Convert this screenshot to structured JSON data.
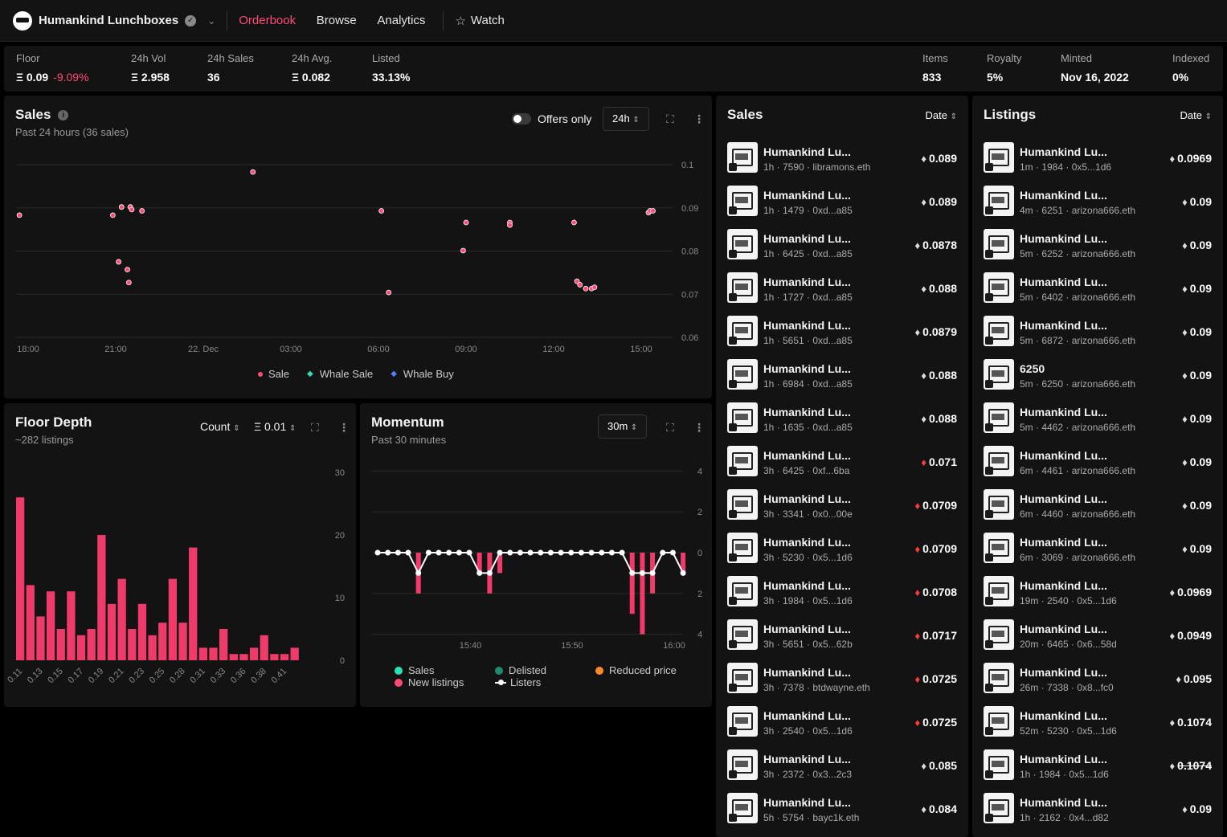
{
  "topbar": {
    "collection_name": "Humankind Lunchboxes",
    "nav": [
      {
        "label": "Orderbook",
        "active": true
      },
      {
        "label": "Browse",
        "active": false
      },
      {
        "label": "Analytics",
        "active": false
      }
    ],
    "watch_label": "Watch"
  },
  "stats": {
    "left": [
      {
        "label": "Floor",
        "value": "Ξ 0.09",
        "change": "-9.09%"
      },
      {
        "label": "24h Vol",
        "value": "Ξ 2.958"
      },
      {
        "label": "24h Sales",
        "value": "36"
      },
      {
        "label": "24h Avg.",
        "value": "Ξ 0.082"
      },
      {
        "label": "Listed",
        "value": "33.13%"
      }
    ],
    "right": [
      {
        "label": "Items",
        "value": "833"
      },
      {
        "label": "Royalty",
        "value": "5%"
      },
      {
        "label": "Minted",
        "value": "Nov 16, 2022"
      },
      {
        "label": "Indexed",
        "value": "0%"
      }
    ]
  },
  "sales_chart": {
    "title": "Sales",
    "subtitle": "Past 24 hours (36 sales)",
    "offers_only_label": "Offers only",
    "range_label": "24h",
    "legend": [
      {
        "label": "Sale",
        "color": "#ff4a76"
      },
      {
        "label": "Whale Sale",
        "color": "#2de0b0"
      },
      {
        "label": "Whale Buy",
        "color": "#5b7bff"
      }
    ]
  },
  "floor_depth": {
    "title": "Floor Depth",
    "subtitle": "~282 listings",
    "mode_label": "Count",
    "bucket_label": "Ξ 0.01"
  },
  "momentum": {
    "title": "Momentum",
    "subtitle": "Past 30 minutes",
    "range_label": "30m",
    "legend": [
      {
        "label": "Sales",
        "color": "#2de0b0"
      },
      {
        "label": "New listings",
        "color": "#ff4a76"
      },
      {
        "label": "Delisted",
        "color": "#1f8a6e"
      },
      {
        "label": "Listers",
        "color": "#ffffff"
      },
      {
        "label": "Reduced price",
        "color": "#ff8a2a"
      }
    ]
  },
  "chart_data": [
    {
      "type": "scatter",
      "x_ticks": [
        "18:00",
        "21:00",
        "22. Dec",
        "03:00",
        "06:00",
        "09:00",
        "12:00",
        "15:00"
      ],
      "y_ticks": [
        "0.1",
        "0.09",
        "0.08",
        "0.07",
        "0.06"
      ],
      "ylim": [
        0.06,
        0.1
      ],
      "series": [
        {
          "name": "Sale",
          "points": [
            [
              -0.3,
              0.0883
            ],
            [
              2.9,
              0.0883
            ],
            [
              3.1,
              0.0775
            ],
            [
              3.2,
              0.0902
            ],
            [
              3.4,
              0.0757
            ],
            [
              3.45,
              0.0727
            ],
            [
              3.5,
              0.0902
            ],
            [
              3.55,
              0.0896
            ],
            [
              3.9,
              0.0893
            ],
            [
              7.7,
              0.0983
            ],
            [
              12.1,
              0.0893
            ],
            [
              12.35,
              0.0704
            ],
            [
              14.9,
              0.0801
            ],
            [
              15.0,
              0.0866
            ],
            [
              16.5,
              0.0866
            ],
            [
              16.5,
              0.086
            ],
            [
              18.7,
              0.0866
            ],
            [
              18.8,
              0.073
            ],
            [
              18.9,
              0.0722
            ],
            [
              19.1,
              0.0713
            ],
            [
              19.3,
              0.0713
            ],
            [
              19.4,
              0.0716
            ],
            [
              21.25,
              0.0889
            ],
            [
              21.3,
              0.0893
            ],
            [
              21.4,
              0.0893
            ]
          ]
        }
      ]
    },
    {
      "type": "bar",
      "categories": [
        "0.11",
        "0.12",
        "0.13",
        "0.14",
        "0.15",
        "0.16",
        "0.17",
        "0.18",
        "0.19",
        "0.2",
        "0.21",
        "0.22",
        "0.23",
        "0.24",
        "0.25",
        "0.26",
        "0.28",
        "0.29",
        "0.31",
        "0.32",
        "0.33",
        "0.35",
        "0.36",
        "0.37",
        "0.38",
        "0.4",
        "0.41",
        "0.42"
      ],
      "tick_labels": [
        "0.11",
        "0.13",
        "0.15",
        "0.17",
        "0.19",
        "0.21",
        "0.23",
        "0.25",
        "0.28",
        "0.31",
        "0.33",
        "0.36",
        "0.38",
        "0.41"
      ],
      "values": [
        26,
        12,
        7,
        11,
        5,
        11,
        4,
        5,
        20,
        9,
        13,
        5,
        9,
        4,
        6,
        13,
        6,
        18,
        2,
        2,
        5,
        1,
        1,
        2,
        4,
        1,
        1,
        2
      ],
      "y_ticks": [
        "30",
        "20",
        "10",
        "0"
      ],
      "ylim": [
        0,
        30
      ]
    },
    {
      "type": "bar",
      "x_ticks": [
        "15:40",
        "15:50",
        "16:00"
      ],
      "y_ticks": [
        "4",
        "2",
        "0",
        "2",
        "4"
      ],
      "ylim": [
        -4,
        4
      ],
      "series": [
        {
          "name": "New listings",
          "values": [
            0,
            0,
            0,
            0,
            -2,
            0,
            0,
            0,
            0,
            0,
            -1,
            -2,
            -1,
            0,
            0,
            0,
            0,
            0,
            0,
            0,
            0,
            0,
            0,
            0,
            0,
            -3,
            -4,
            -2,
            0,
            0,
            -1
          ]
        },
        {
          "name": "Listers",
          "values": [
            0,
            0,
            0,
            0,
            -1,
            0,
            0,
            0,
            0,
            0,
            -1,
            -1,
            0,
            0,
            0,
            0,
            0,
            0,
            0,
            0,
            0,
            0,
            0,
            0,
            0,
            -1,
            -1,
            -1,
            0,
            0,
            -1
          ]
        }
      ]
    }
  ],
  "sales_list": {
    "title": "Sales",
    "sort_label": "Date",
    "items": [
      {
        "name": "Humankind Lu...",
        "meta": "1h · 7590 · libramons.eth",
        "price": "0.089",
        "eth": "grey"
      },
      {
        "name": "Humankind Lu...",
        "meta": "1h · 1479 · 0xd...a85",
        "price": "0.089",
        "eth": "grey"
      },
      {
        "name": "Humankind Lu...",
        "meta": "1h · 6425 · 0xd...a85",
        "price": "0.0878",
        "eth": "grey"
      },
      {
        "name": "Humankind Lu...",
        "meta": "1h · 1727 · 0xd...a85",
        "price": "0.088",
        "eth": "grey"
      },
      {
        "name": "Humankind Lu...",
        "meta": "1h · 5651 · 0xd...a85",
        "price": "0.0879",
        "eth": "grey"
      },
      {
        "name": "Humankind Lu...",
        "meta": "1h · 6984 · 0xd...a85",
        "price": "0.088",
        "eth": "grey"
      },
      {
        "name": "Humankind Lu...",
        "meta": "1h · 1635 · 0xd...a85",
        "price": "0.088",
        "eth": "grey"
      },
      {
        "name": "Humankind Lu...",
        "meta": "3h · 6425 · 0xf...6ba",
        "price": "0.071",
        "eth": "red"
      },
      {
        "name": "Humankind Lu...",
        "meta": "3h · 3341 · 0x0...00e",
        "price": "0.0709",
        "eth": "red"
      },
      {
        "name": "Humankind Lu...",
        "meta": "3h · 5230 · 0x5...1d6",
        "price": "0.0709",
        "eth": "red"
      },
      {
        "name": "Humankind Lu...",
        "meta": "3h · 1984 · 0x5...1d6",
        "price": "0.0708",
        "eth": "red"
      },
      {
        "name": "Humankind Lu...",
        "meta": "3h · 5651 · 0x5...62b",
        "price": "0.0717",
        "eth": "red"
      },
      {
        "name": "Humankind Lu...",
        "meta": "3h · 7378 · btdwayne.eth",
        "price": "0.0725",
        "eth": "red"
      },
      {
        "name": "Humankind Lu...",
        "meta": "3h · 2540 · 0x5...1d6",
        "price": "0.0725",
        "eth": "red"
      },
      {
        "name": "Humankind Lu...",
        "meta": "3h · 2372 · 0x3...2c3",
        "price": "0.085",
        "eth": "grey"
      },
      {
        "name": "Humankind Lu...",
        "meta": "5h · 5754 · bayc1k.eth",
        "price": "0.084",
        "eth": "grey"
      }
    ]
  },
  "listings_list": {
    "title": "Listings",
    "sort_label": "Date",
    "items": [
      {
        "name": "Humankind Lu...",
        "meta": "1m · 1984 · 0x5...1d6",
        "price": "0.0969",
        "eth": "grey"
      },
      {
        "name": "Humankind Lu...",
        "meta": "4m · 6251 · arizona666.eth",
        "price": "0.09",
        "eth": "grey"
      },
      {
        "name": "Humankind Lu...",
        "meta": "5m · 6252 · arizona666.eth",
        "price": "0.09",
        "eth": "grey"
      },
      {
        "name": "Humankind Lu...",
        "meta": "5m · 6402 · arizona666.eth",
        "price": "0.09",
        "eth": "grey"
      },
      {
        "name": "Humankind Lu...",
        "meta": "5m · 6872 · arizona666.eth",
        "price": "0.09",
        "eth": "grey"
      },
      {
        "name": "6250",
        "meta": "5m · 6250 · arizona666.eth",
        "price": "0.09",
        "eth": "grey"
      },
      {
        "name": "Humankind Lu...",
        "meta": "5m · 4462 · arizona666.eth",
        "price": "0.09",
        "eth": "grey"
      },
      {
        "name": "Humankind Lu...",
        "meta": "6m · 4461 · arizona666.eth",
        "price": "0.09",
        "eth": "grey"
      },
      {
        "name": "Humankind Lu...",
        "meta": "6m · 4460 · arizona666.eth",
        "price": "0.09",
        "eth": "grey"
      },
      {
        "name": "Humankind Lu...",
        "meta": "6m · 3069 · arizona666.eth",
        "price": "0.09",
        "eth": "grey"
      },
      {
        "name": "Humankind Lu...",
        "meta": "19m · 2540 · 0x5...1d6",
        "price": "0.0969",
        "eth": "grey"
      },
      {
        "name": "Humankind Lu...",
        "meta": "20m · 6465 · 0x6...58d",
        "price": "0.0949",
        "eth": "grey"
      },
      {
        "name": "Humankind Lu...",
        "meta": "26m · 7338 · 0x8...fc0",
        "price": "0.095",
        "eth": "grey"
      },
      {
        "name": "Humankind Lu...",
        "meta": "52m · 5230 · 0x5...1d6",
        "price": "0.1074",
        "eth": "grey"
      },
      {
        "name": "Humankind Lu...",
        "meta": "1h · 1984 · 0x5...1d6",
        "price": "0.1074",
        "eth": "grey",
        "struck": true
      },
      {
        "name": "Humankind Lu...",
        "meta": "1h · 2162 · 0x4...d82",
        "price": "0.09",
        "eth": "grey"
      }
    ]
  }
}
